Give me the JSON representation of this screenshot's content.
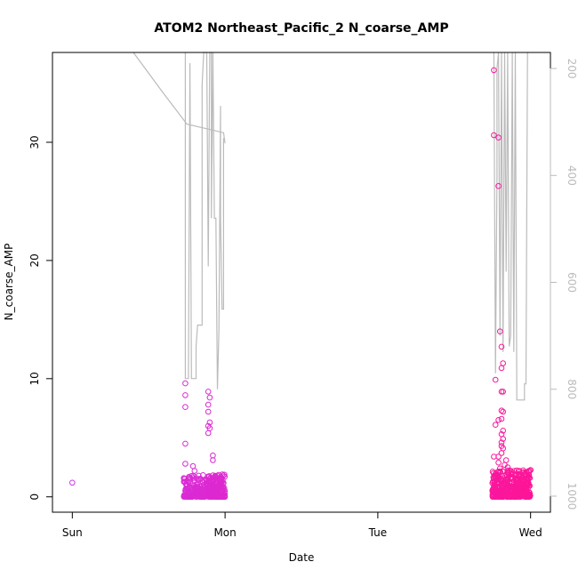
{
  "chart_data": {
    "type": "scatter",
    "title": "ATOM2 Northeast_Pacific_2 N_coarse_AMP",
    "xlabel": "Date",
    "ylabel": "N_coarse_AMP",
    "x_ticks": [
      "Sun",
      "Mon",
      "Tue",
      "Wed"
    ],
    "x_tick_days": [
      0,
      1,
      2,
      3
    ],
    "xlim_days": [
      -0.13,
      3.13
    ],
    "ylim": [
      -1.3,
      37.6
    ],
    "y_ticks": [
      0,
      10,
      20,
      30
    ],
    "y_right_ticks": [
      200,
      400,
      600,
      800,
      1000
    ],
    "y_right_lim": [
      1030,
      170
    ],
    "point_color_low": "#cc33ee",
    "point_color_high": "#ff1493",
    "altitude_line_color": "#bbbbbb",
    "outlier_points": [
      {
        "x": 0.0,
        "y": 1.2
      },
      {
        "x": 0.74,
        "y": 9.6
      },
      {
        "x": 0.74,
        "y": 8.6
      },
      {
        "x": 0.74,
        "y": 7.6
      },
      {
        "x": 0.74,
        "y": 4.5
      },
      {
        "x": 0.74,
        "y": 2.8
      },
      {
        "x": 0.79,
        "y": 2.6
      },
      {
        "x": 0.8,
        "y": 2.2
      },
      {
        "x": 0.89,
        "y": 8.9
      },
      {
        "x": 0.9,
        "y": 8.4
      },
      {
        "x": 0.89,
        "y": 7.8
      },
      {
        "x": 0.89,
        "y": 7.2
      },
      {
        "x": 0.9,
        "y": 6.3
      },
      {
        "x": 0.89,
        "y": 6.0
      },
      {
        "x": 0.9,
        "y": 5.8
      },
      {
        "x": 0.89,
        "y": 5.4
      },
      {
        "x": 0.92,
        "y": 3.5
      },
      {
        "x": 0.92,
        "y": 3.1
      },
      {
        "x": 2.76,
        "y": 36.1
      },
      {
        "x": 2.76,
        "y": 30.6
      },
      {
        "x": 2.79,
        "y": 30.4
      },
      {
        "x": 2.79,
        "y": 26.3
      },
      {
        "x": 2.8,
        "y": 14.0
      },
      {
        "x": 2.81,
        "y": 12.7
      },
      {
        "x": 2.82,
        "y": 11.3
      },
      {
        "x": 2.81,
        "y": 10.9
      },
      {
        "x": 2.77,
        "y": 9.9
      },
      {
        "x": 2.81,
        "y": 8.9
      },
      {
        "x": 2.82,
        "y": 8.9
      },
      {
        "x": 2.81,
        "y": 7.3
      },
      {
        "x": 2.82,
        "y": 7.2
      },
      {
        "x": 2.81,
        "y": 6.6
      },
      {
        "x": 2.79,
        "y": 6.5
      },
      {
        "x": 2.77,
        "y": 6.1
      },
      {
        "x": 2.82,
        "y": 5.6
      },
      {
        "x": 2.81,
        "y": 5.3
      },
      {
        "x": 2.82,
        "y": 4.9
      },
      {
        "x": 2.81,
        "y": 4.6
      },
      {
        "x": 2.81,
        "y": 4.3
      },
      {
        "x": 2.82,
        "y": 4.1
      },
      {
        "x": 2.81,
        "y": 3.7
      },
      {
        "x": 2.79,
        "y": 3.4
      },
      {
        "x": 2.76,
        "y": 3.4
      },
      {
        "x": 2.84,
        "y": 3.1
      },
      {
        "x": 2.79,
        "y": 2.9
      },
      {
        "x": 2.83,
        "y": 2.7
      },
      {
        "x": 2.85,
        "y": 2.5
      },
      {
        "x": 2.8,
        "y": 2.4
      }
    ],
    "dense_clusters": [
      {
        "x_start": 0.73,
        "x_end": 1.0,
        "y_max": 1.9,
        "count": 380
      },
      {
        "x_start": 2.75,
        "x_end": 3.0,
        "y_max": 2.3,
        "count": 450
      }
    ],
    "altitude_series": [
      [
        0.4,
        170
      ],
      [
        0.59,
        245
      ],
      [
        0.76,
        305
      ],
      [
        0.77,
        300
      ],
      [
        0.99,
        310
      ],
      [
        1.0,
        330
      ],
      [
        0.99,
        800
      ]
    ],
    "altitude_segments": [
      [
        [
          0.4,
          170
        ],
        [
          0.58,
          240
        ],
        [
          0.75,
          304
        ],
        [
          0.99,
          320
        ],
        [
          1.0,
          340
        ]
      ],
      [
        [
          0.74,
          170
        ],
        [
          0.74,
          780
        ],
        [
          0.76,
          780
        ],
        [
          0.77,
          190
        ],
        [
          0.78,
          780
        ],
        [
          0.81,
          780
        ],
        [
          0.81,
          720
        ],
        [
          0.82,
          680
        ],
        [
          0.85,
          680
        ],
        [
          0.85,
          230
        ],
        [
          0.86,
          170
        ],
        [
          0.87,
          170
        ],
        [
          0.88,
          170
        ],
        [
          0.89,
          570
        ],
        [
          0.9,
          170
        ],
        [
          0.91,
          170
        ],
        [
          0.91,
          480
        ],
        [
          0.92,
          170
        ],
        [
          0.93,
          480
        ],
        [
          0.94,
          480
        ],
        [
          0.95,
          800
        ],
        [
          0.96,
          690
        ],
        [
          0.97,
          270
        ],
        [
          0.97,
          480
        ],
        [
          0.98,
          650
        ],
        [
          0.99,
          650
        ],
        [
          0.99,
          330
        ]
      ],
      [
        [
          2.76,
          170
        ],
        [
          2.77,
          770
        ],
        [
          2.78,
          400
        ],
        [
          2.78,
          200
        ],
        [
          2.79,
          170
        ],
        [
          2.8,
          700
        ],
        [
          2.81,
          170
        ],
        [
          2.82,
          730
        ],
        [
          2.83,
          170
        ],
        [
          2.84,
          580
        ],
        [
          2.85,
          170
        ],
        [
          2.86,
          720
        ],
        [
          2.87,
          700
        ],
        [
          2.88,
          170
        ],
        [
          2.89,
          730
        ],
        [
          2.9,
          170
        ],
        [
          2.91,
          820
        ],
        [
          2.96,
          820
        ],
        [
          2.96,
          790
        ],
        [
          2.97,
          790
        ],
        [
          2.98,
          170
        ]
      ]
    ],
    "legend": "none",
    "grid": false
  }
}
